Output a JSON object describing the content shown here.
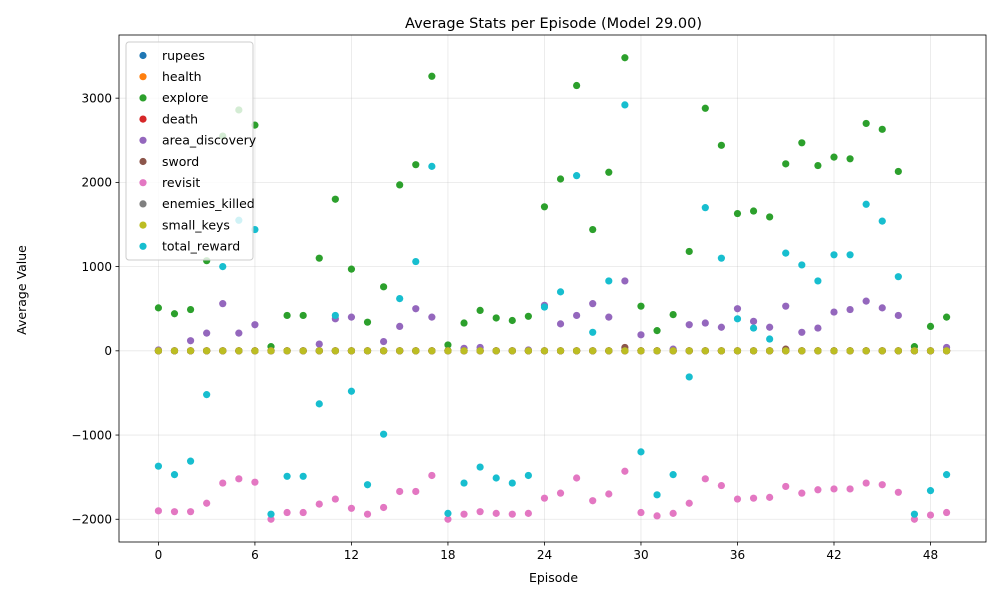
{
  "chart_data": {
    "type": "scatter",
    "title": "Average Stats per Episode (Model 29.00)",
    "xlabel": "Episode",
    "ylabel": "Average Value",
    "xlim": [
      -2.45,
      51.45
    ],
    "ylim": [
      -2270,
      3750
    ],
    "xticks": [
      0,
      6,
      12,
      18,
      24,
      30,
      36,
      42,
      48
    ],
    "yticks": [
      -2000,
      -1000,
      0,
      1000,
      2000,
      3000
    ],
    "xtick_labels": [
      "0",
      "6",
      "12",
      "18",
      "24",
      "30",
      "36",
      "42",
      "48"
    ],
    "ytick_labels": [
      "−2000",
      "−1000",
      "0",
      "1000",
      "2000",
      "3000"
    ],
    "grid": true,
    "legend_position": "upper-left",
    "x": [
      0,
      1,
      2,
      3,
      4,
      5,
      6,
      7,
      8,
      9,
      10,
      11,
      12,
      13,
      14,
      15,
      16,
      17,
      18,
      19,
      20,
      21,
      22,
      23,
      24,
      25,
      26,
      27,
      28,
      29,
      30,
      31,
      32,
      33,
      34,
      35,
      36,
      37,
      38,
      39,
      40,
      41,
      42,
      43,
      44,
      45,
      46,
      47,
      48,
      49
    ],
    "series": [
      {
        "name": "rupees",
        "color": "#1f77b4",
        "values": [
          0,
          0,
          0,
          0,
          0,
          0,
          0,
          0,
          0,
          0,
          0,
          0,
          0,
          0,
          0,
          0,
          0,
          0,
          0,
          0,
          0,
          0,
          0,
          0,
          0,
          0,
          0,
          0,
          0,
          0,
          0,
          0,
          0,
          0,
          0,
          0,
          0,
          0,
          0,
          0,
          0,
          0,
          0,
          0,
          0,
          0,
          0,
          0,
          0,
          0
        ]
      },
      {
        "name": "health",
        "color": "#ff7f0e",
        "values": [
          0,
          0,
          0,
          0,
          0,
          0,
          0,
          0,
          0,
          0,
          0,
          0,
          0,
          0,
          0,
          0,
          0,
          0,
          0,
          0,
          0,
          0,
          0,
          0,
          0,
          0,
          0,
          0,
          0,
          0,
          0,
          0,
          0,
          0,
          0,
          0,
          0,
          0,
          0,
          0,
          0,
          0,
          0,
          0,
          0,
          0,
          0,
          0,
          0,
          0
        ]
      },
      {
        "name": "explore",
        "color": "#2ca02c",
        "values": [
          510,
          440,
          490,
          1070,
          2550,
          2860,
          2680,
          50,
          420,
          420,
          1100,
          1800,
          970,
          340,
          760,
          1970,
          2210,
          3260,
          70,
          330,
          480,
          390,
          360,
          410,
          1710,
          2040,
          3150,
          1440,
          2120,
          3480,
          530,
          240,
          430,
          1180,
          2880,
          2440,
          1630,
          1660,
          1590,
          2220,
          2470,
          2200,
          2300,
          2280,
          2700,
          2630,
          2130,
          50,
          290,
          400
        ]
      },
      {
        "name": "death",
        "color": "#d62728",
        "values": [
          0,
          0,
          0,
          0,
          0,
          0,
          0,
          0,
          0,
          0,
          0,
          0,
          0,
          0,
          0,
          0,
          0,
          0,
          0,
          0,
          0,
          0,
          0,
          0,
          0,
          0,
          0,
          0,
          0,
          0,
          0,
          0,
          0,
          0,
          0,
          0,
          0,
          0,
          0,
          0,
          0,
          0,
          0,
          0,
          0,
          0,
          0,
          0,
          0,
          0
        ]
      },
      {
        "name": "area_discovery",
        "color": "#9467bd",
        "values": [
          10,
          0,
          120,
          210,
          560,
          210,
          310,
          0,
          0,
          0,
          80,
          380,
          400,
          0,
          110,
          290,
          500,
          400,
          0,
          30,
          40,
          0,
          0,
          10,
          540,
          320,
          420,
          560,
          400,
          830,
          190,
          0,
          20,
          310,
          330,
          280,
          500,
          350,
          280,
          530,
          220,
          270,
          460,
          490,
          590,
          510,
          420,
          0,
          0,
          40
        ]
      },
      {
        "name": "sword",
        "color": "#8c564b",
        "values": [
          0,
          0,
          0,
          0,
          0,
          0,
          0,
          0,
          0,
          0,
          0,
          0,
          0,
          0,
          0,
          0,
          0,
          0,
          0,
          0,
          0,
          0,
          0,
          0,
          0,
          0,
          0,
          0,
          0,
          40,
          0,
          0,
          0,
          0,
          0,
          0,
          0,
          0,
          0,
          20,
          0,
          0,
          0,
          0,
          0,
          0,
          0,
          0,
          0,
          0
        ]
      },
      {
        "name": "revisit",
        "color": "#e377c2",
        "values": [
          -1900,
          -1910,
          -1910,
          -1810,
          -1570,
          -1520,
          -1560,
          -2000,
          -1920,
          -1920,
          -1820,
          -1760,
          -1870,
          -1940,
          -1860,
          -1670,
          -1670,
          -1480,
          -2000,
          -1940,
          -1910,
          -1930,
          -1940,
          -1930,
          -1750,
          -1690,
          -1510,
          -1780,
          -1700,
          -1430,
          -1920,
          -1960,
          -1930,
          -1810,
          -1520,
          -1600,
          -1760,
          -1750,
          -1740,
          -1610,
          -1690,
          -1650,
          -1640,
          -1640,
          -1570,
          -1590,
          -1680,
          -2000,
          -1950,
          -1920
        ]
      },
      {
        "name": "enemies_killed",
        "color": "#7f7f7f",
        "values": [
          0,
          0,
          0,
          0,
          0,
          0,
          0,
          0,
          0,
          0,
          0,
          0,
          0,
          0,
          0,
          0,
          0,
          0,
          0,
          0,
          0,
          0,
          0,
          0,
          0,
          0,
          0,
          0,
          0,
          0,
          0,
          0,
          0,
          0,
          0,
          0,
          0,
          0,
          0,
          0,
          0,
          0,
          0,
          0,
          0,
          0,
          0,
          0,
          0,
          0
        ]
      },
      {
        "name": "small_keys",
        "color": "#bcbd22",
        "values": [
          0,
          0,
          0,
          0,
          0,
          0,
          0,
          0,
          0,
          0,
          0,
          0,
          0,
          0,
          0,
          0,
          0,
          0,
          0,
          0,
          0,
          0,
          0,
          0,
          0,
          0,
          0,
          0,
          0,
          0,
          0,
          0,
          0,
          0,
          0,
          0,
          0,
          0,
          0,
          0,
          0,
          0,
          0,
          0,
          0,
          0,
          0,
          0,
          0,
          0
        ]
      },
      {
        "name": "total_reward",
        "color": "#17becf",
        "values": [
          -1370,
          -1470,
          -1310,
          -520,
          1000,
          1550,
          1440,
          -1940,
          -1490,
          -1490,
          -630,
          420,
          -480,
          -1590,
          -990,
          620,
          1060,
          2190,
          -1930,
          -1570,
          -1380,
          -1510,
          -1570,
          -1480,
          520,
          700,
          2080,
          220,
          830,
          2920,
          -1200,
          -1710,
          -1470,
          -310,
          1700,
          1100,
          380,
          270,
          140,
          1160,
          1020,
          830,
          1140,
          1140,
          1740,
          1540,
          880,
          -1940,
          -1660,
          -1470
        ]
      }
    ]
  }
}
